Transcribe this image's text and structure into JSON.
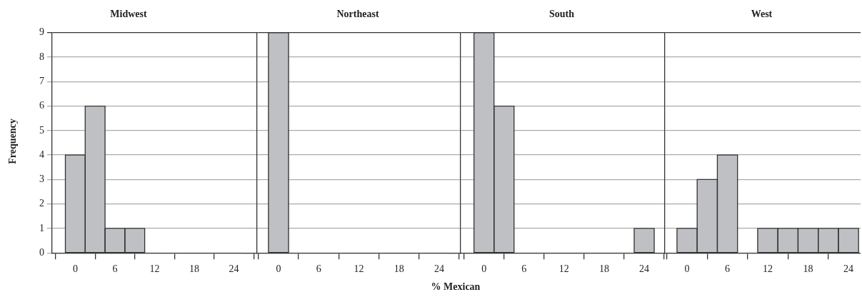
{
  "chart_data": [
    {
      "type": "histogram",
      "title": "Midwest",
      "ylabel": "Frequency",
      "bins": [
        -1.5,
        1.5,
        4.5,
        7.5,
        10.5,
        13.5,
        16.5,
        19.5,
        22.5,
        25.5
      ],
      "values": [
        4,
        6,
        1,
        1,
        0,
        0,
        0,
        0,
        0
      ],
      "color": "#bfc0c4",
      "xlim": [
        -3.5,
        27.5
      ],
      "xticks": [
        0,
        6,
        12,
        18,
        24
      ],
      "ylim": [
        0,
        9
      ],
      "yticks": [
        0,
        1,
        2,
        3,
        4,
        5,
        6,
        7,
        8,
        9
      ],
      "grid": "y"
    },
    {
      "type": "histogram",
      "title": "Northeast",
      "xlabel": "% Mexican",
      "bins": [
        -1.5,
        1.5,
        4.5,
        7.5,
        10.5,
        13.5,
        16.5,
        19.5,
        22.5,
        25.5
      ],
      "values": [
        9,
        0,
        0,
        0,
        0,
        0,
        0,
        0,
        0
      ],
      "color": "#bfc0c4",
      "xlim": [
        -3.2,
        27.2
      ],
      "xticks": [
        0,
        6,
        12,
        18,
        24
      ],
      "ylim": [
        0,
        9
      ],
      "yticks": [
        0,
        1,
        2,
        3,
        4,
        5,
        6,
        7,
        8,
        9
      ],
      "grid": "y",
      "tick_labels": "x"
    },
    {
      "type": "histogram",
      "title": "South",
      "bins": [
        -1.5,
        1.5,
        4.5,
        7.5,
        10.5,
        13.5,
        16.5,
        19.5,
        22.5,
        25.5
      ],
      "values": [
        9,
        6,
        0,
        0,
        0,
        0,
        0,
        0,
        1
      ],
      "color": "#bfc0c4",
      "xlim": [
        -3.5,
        27.1
      ],
      "xticks": [
        0,
        6,
        12,
        18,
        24
      ],
      "ylim": [
        0,
        9
      ],
      "yticks": [
        0,
        1,
        2,
        3,
        4,
        5,
        6,
        7,
        8,
        9
      ],
      "grid": "y",
      "tick_labels": "x"
    },
    {
      "type": "histogram",
      "title": "West",
      "bins": [
        -1.5,
        1.5,
        4.5,
        7.5,
        10.5,
        13.5,
        16.5,
        19.5,
        22.5,
        25.5
      ],
      "values": [
        1,
        3,
        4,
        0,
        1,
        1,
        1,
        1,
        1
      ],
      "color": "#bfc0c4",
      "xlim": [
        -3.3,
        25.8
      ],
      "xticks": [
        0,
        6,
        12,
        18,
        24
      ],
      "ylim": [
        0,
        9
      ],
      "yticks": [
        0,
        1,
        2,
        3,
        4,
        5,
        6,
        7,
        8,
        9
      ],
      "grid": "y",
      "tick_labels": "x"
    }
  ]
}
